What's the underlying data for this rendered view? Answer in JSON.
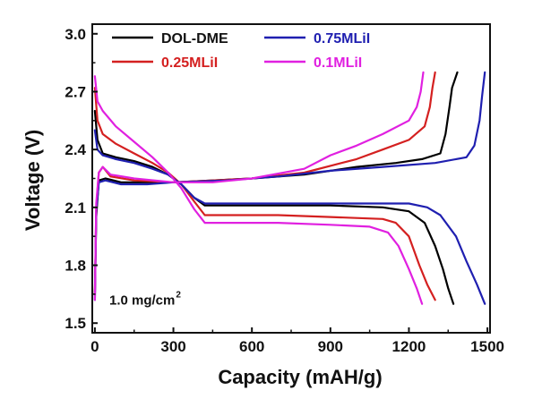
{
  "chart_data": {
    "type": "line",
    "title": "",
    "xlabel": "Capacity (mAH/g)",
    "ylabel": "Voltage (V)",
    "xlim": [
      -10,
      1510
    ],
    "ylim": [
      1.45,
      3.05
    ],
    "xticks": [
      0,
      300,
      600,
      900,
      1200,
      1500
    ],
    "yticks": [
      1.5,
      1.8,
      2.1,
      2.4,
      2.7,
      3.0
    ],
    "xtick_labels": [
      "0",
      "300",
      "600",
      "900",
      "1200",
      "1500"
    ],
    "ytick_labels": [
      "1.5",
      "1.8",
      "2.1",
      "2.4",
      "2.7",
      "3.0"
    ],
    "annotation": {
      "text": "1.0 mg/cm",
      "superscript": "2",
      "x": 5,
      "y": 1.62
    },
    "legend_position": "top",
    "series": [
      {
        "name": "DOL-DME",
        "color": "#000000",
        "discharge": [
          [
            0,
            2.6
          ],
          [
            10,
            2.45
          ],
          [
            30,
            2.38
          ],
          [
            80,
            2.36
          ],
          [
            150,
            2.34
          ],
          [
            220,
            2.31
          ],
          [
            280,
            2.27
          ],
          [
            330,
            2.22
          ],
          [
            380,
            2.15
          ],
          [
            420,
            2.11
          ],
          [
            500,
            2.11
          ],
          [
            700,
            2.11
          ],
          [
            900,
            2.11
          ],
          [
            1100,
            2.1
          ],
          [
            1200,
            2.08
          ],
          [
            1260,
            2.02
          ],
          [
            1300,
            1.9
          ],
          [
            1330,
            1.78
          ],
          [
            1350,
            1.68
          ],
          [
            1370,
            1.6
          ]
        ],
        "charge": [
          [
            0,
            1.65
          ],
          [
            5,
            2.05
          ],
          [
            15,
            2.24
          ],
          [
            40,
            2.25
          ],
          [
            100,
            2.23
          ],
          [
            200,
            2.23
          ],
          [
            300,
            2.23
          ],
          [
            450,
            2.24
          ],
          [
            600,
            2.25
          ],
          [
            800,
            2.27
          ],
          [
            1000,
            2.31
          ],
          [
            1150,
            2.33
          ],
          [
            1250,
            2.35
          ],
          [
            1320,
            2.38
          ],
          [
            1340,
            2.48
          ],
          [
            1355,
            2.62
          ],
          [
            1365,
            2.72
          ],
          [
            1385,
            2.8
          ]
        ]
      },
      {
        "name": "0.25MLiI",
        "color": "#d42020",
        "discharge": [
          [
            0,
            2.72
          ],
          [
            10,
            2.55
          ],
          [
            30,
            2.48
          ],
          [
            80,
            2.43
          ],
          [
            150,
            2.38
          ],
          [
            220,
            2.33
          ],
          [
            280,
            2.28
          ],
          [
            330,
            2.22
          ],
          [
            380,
            2.13
          ],
          [
            420,
            2.06
          ],
          [
            500,
            2.06
          ],
          [
            700,
            2.06
          ],
          [
            900,
            2.05
          ],
          [
            1100,
            2.04
          ],
          [
            1150,
            2.02
          ],
          [
            1200,
            1.95
          ],
          [
            1240,
            1.8
          ],
          [
            1270,
            1.7
          ],
          [
            1300,
            1.62
          ]
        ],
        "charge": [
          [
            0,
            1.65
          ],
          [
            5,
            2.1
          ],
          [
            15,
            2.28
          ],
          [
            30,
            2.31
          ],
          [
            60,
            2.26
          ],
          [
            150,
            2.24
          ],
          [
            300,
            2.23
          ],
          [
            450,
            2.24
          ],
          [
            600,
            2.25
          ],
          [
            800,
            2.28
          ],
          [
            1000,
            2.35
          ],
          [
            1100,
            2.4
          ],
          [
            1200,
            2.45
          ],
          [
            1260,
            2.52
          ],
          [
            1280,
            2.62
          ],
          [
            1290,
            2.72
          ],
          [
            1300,
            2.8
          ]
        ]
      },
      {
        "name": "0.75MLiI",
        "color": "#1f1fb0",
        "discharge": [
          [
            0,
            2.5
          ],
          [
            10,
            2.4
          ],
          [
            30,
            2.37
          ],
          [
            80,
            2.35
          ],
          [
            150,
            2.33
          ],
          [
            220,
            2.3
          ],
          [
            280,
            2.27
          ],
          [
            330,
            2.22
          ],
          [
            380,
            2.15
          ],
          [
            420,
            2.12
          ],
          [
            500,
            2.12
          ],
          [
            700,
            2.12
          ],
          [
            900,
            2.12
          ],
          [
            1100,
            2.12
          ],
          [
            1200,
            2.12
          ],
          [
            1270,
            2.1
          ],
          [
            1320,
            2.06
          ],
          [
            1380,
            1.95
          ],
          [
            1420,
            1.82
          ],
          [
            1460,
            1.7
          ],
          [
            1490,
            1.6
          ]
        ],
        "charge": [
          [
            0,
            1.62
          ],
          [
            5,
            2.08
          ],
          [
            15,
            2.23
          ],
          [
            40,
            2.24
          ],
          [
            100,
            2.22
          ],
          [
            200,
            2.22
          ],
          [
            300,
            2.23
          ],
          [
            500,
            2.24
          ],
          [
            700,
            2.26
          ],
          [
            900,
            2.29
          ],
          [
            1100,
            2.31
          ],
          [
            1300,
            2.33
          ],
          [
            1420,
            2.36
          ],
          [
            1450,
            2.42
          ],
          [
            1470,
            2.55
          ],
          [
            1480,
            2.68
          ],
          [
            1490,
            2.8
          ]
        ]
      },
      {
        "name": "0.1MLiI",
        "color": "#e020e0",
        "discharge": [
          [
            0,
            2.78
          ],
          [
            10,
            2.65
          ],
          [
            30,
            2.6
          ],
          [
            80,
            2.52
          ],
          [
            150,
            2.44
          ],
          [
            220,
            2.36
          ],
          [
            280,
            2.28
          ],
          [
            330,
            2.2
          ],
          [
            380,
            2.09
          ],
          [
            420,
            2.02
          ],
          [
            500,
            2.02
          ],
          [
            700,
            2.02
          ],
          [
            900,
            2.01
          ],
          [
            1050,
            2.0
          ],
          [
            1120,
            1.97
          ],
          [
            1160,
            1.9
          ],
          [
            1200,
            1.78
          ],
          [
            1230,
            1.68
          ],
          [
            1250,
            1.6
          ]
        ],
        "charge": [
          [
            0,
            1.62
          ],
          [
            5,
            2.12
          ],
          [
            15,
            2.28
          ],
          [
            30,
            2.31
          ],
          [
            60,
            2.27
          ],
          [
            150,
            2.25
          ],
          [
            300,
            2.23
          ],
          [
            450,
            2.23
          ],
          [
            600,
            2.25
          ],
          [
            800,
            2.3
          ],
          [
            900,
            2.37
          ],
          [
            1000,
            2.42
          ],
          [
            1100,
            2.48
          ],
          [
            1200,
            2.55
          ],
          [
            1230,
            2.62
          ],
          [
            1245,
            2.7
          ],
          [
            1255,
            2.8
          ]
        ]
      }
    ]
  }
}
